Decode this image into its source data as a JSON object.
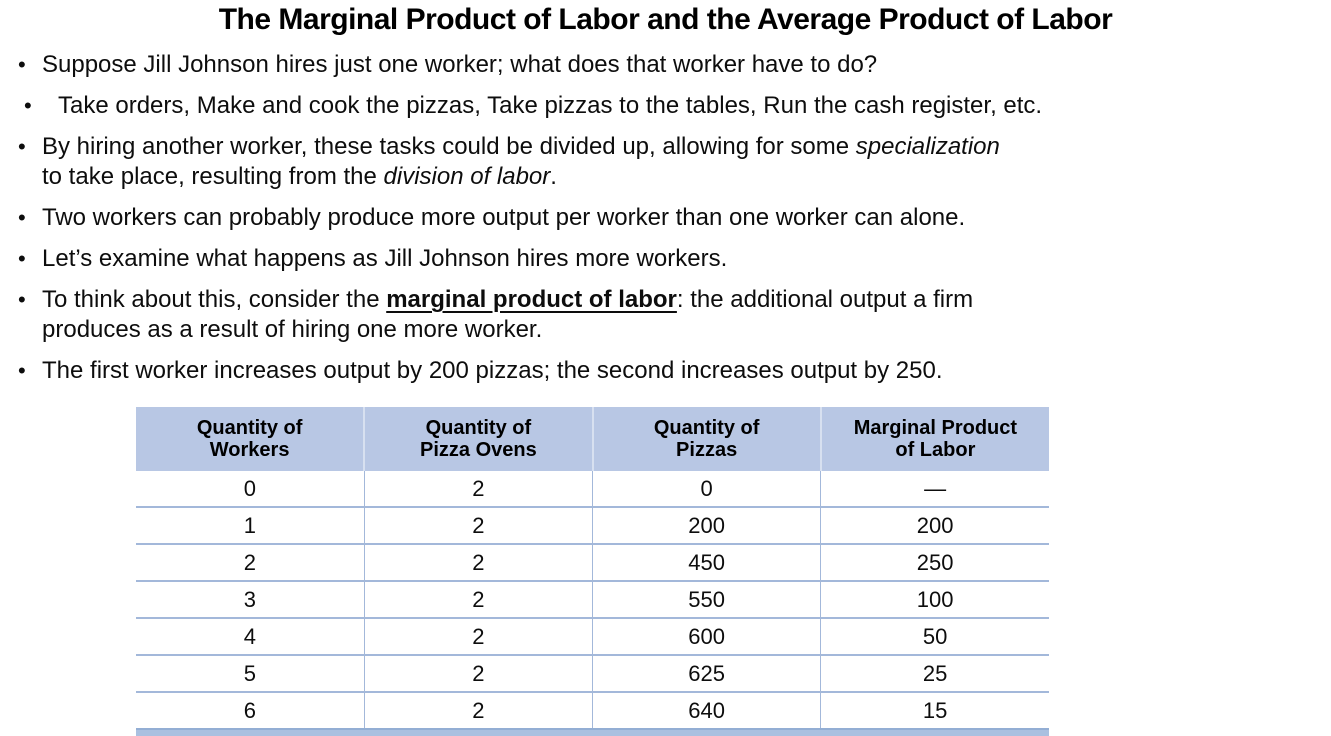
{
  "title": "The Marginal Product of Labor and the Average Product of Labor",
  "bullet_char": "•",
  "bullets": [
    {
      "lines": [
        {
          "segments": [
            {
              "text": "Suppose Jill Johnson hires just one worker; what does that worker have to do?"
            }
          ]
        }
      ]
    },
    {
      "lines": [
        {
          "segments": [
            {
              "text": "Take orders, Make and cook the pizzas, Take pizzas to the tables, Run the cash register, etc."
            }
          ]
        }
      ]
    },
    {
      "lines": [
        {
          "segments": [
            {
              "text": "By hiring another worker, these tasks could be divided up, allowing for some "
            },
            {
              "text": "specialization"
            }
          ]
        },
        {
          "segments": [
            {
              "text": "to take place, resulting from the "
            },
            {
              "text": "division of labor"
            },
            {
              "text": "."
            }
          ]
        }
      ]
    },
    {
      "lines": [
        {
          "segments": [
            {
              "text": "Two workers can probably produce more output per worker than one worker can alone."
            }
          ]
        }
      ]
    },
    {
      "lines": [
        {
          "segments": [
            {
              "text": "Let’s examine what happens as Jill Johnson hires more workers."
            }
          ]
        }
      ]
    },
    {
      "lines": [
        {
          "segments": [
            {
              "text": "To think about this, consider the "
            },
            {
              "text": "marginal product of labor"
            },
            {
              "text": ": the additional output a firm"
            }
          ]
        },
        {
          "segments": [
            {
              "text": "produces as a result of hiring one more worker."
            }
          ]
        }
      ]
    },
    {
      "lines": [
        {
          "segments": [
            {
              "text": "The first worker increases output by 200 pizzas; the second increases output by 250."
            }
          ]
        }
      ]
    }
  ],
  "table": {
    "headers": [
      "Quantity of\nWorkers",
      "Quantity of\nPizza Ovens",
      "Quantity of\nPizzas",
      "Marginal Product\nof Labor"
    ],
    "rows": [
      [
        "0",
        "2",
        "0",
        "—"
      ],
      [
        "1",
        "2",
        "200",
        "200"
      ],
      [
        "2",
        "2",
        "450",
        "250"
      ],
      [
        "3",
        "2",
        "550",
        "100"
      ],
      [
        "4",
        "2",
        "600",
        "50"
      ],
      [
        "5",
        "2",
        "625",
        "25"
      ],
      [
        "6",
        "2",
        "640",
        "15"
      ]
    ]
  },
  "colors": {
    "table_header_bg": "#b8c7e4",
    "table_line": "#a3b8da",
    "table_bottom_bar": "#aac0e0",
    "text": "#0d0d0d"
  }
}
